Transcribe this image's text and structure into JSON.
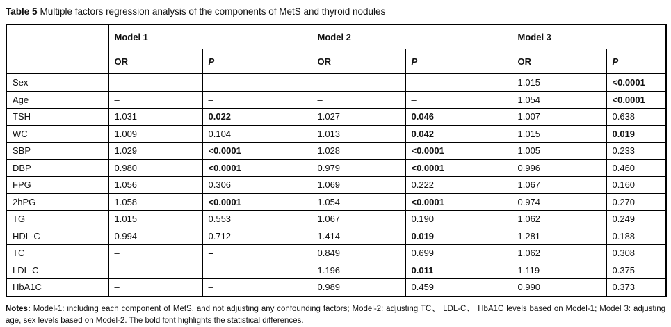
{
  "title": {
    "label": "Table 5",
    "text": "Multiple factors regression analysis of the components of MetS and thyroid nodules"
  },
  "table": {
    "models": [
      "Model 1",
      "Model 2",
      "Model 3"
    ],
    "or_label": "OR",
    "p_label": "P",
    "rows": [
      {
        "label": "Sex",
        "values": [
          "–",
          "–",
          "–",
          "–",
          "1.015",
          "<0.0001"
        ],
        "bold": [
          false,
          false,
          false,
          false,
          false,
          true
        ]
      },
      {
        "label": "Age",
        "values": [
          "–",
          "–",
          "–",
          "–",
          "1.054",
          "<0.0001"
        ],
        "bold": [
          false,
          false,
          false,
          false,
          false,
          true
        ]
      },
      {
        "label": "TSH",
        "values": [
          "1.031",
          "0.022",
          "1.027",
          "0.046",
          "1.007",
          "0.638"
        ],
        "bold": [
          false,
          true,
          false,
          true,
          false,
          false
        ]
      },
      {
        "label": "WC",
        "values": [
          "1.009",
          "0.104",
          "1.013",
          "0.042",
          "1.015",
          "0.019"
        ],
        "bold": [
          false,
          false,
          false,
          true,
          false,
          true
        ]
      },
      {
        "label": "SBP",
        "values": [
          "1.029",
          "<0.0001",
          "1.028",
          "<0.0001",
          "1.005",
          "0.233"
        ],
        "bold": [
          false,
          true,
          false,
          true,
          false,
          false
        ]
      },
      {
        "label": "DBP",
        "values": [
          "0.980",
          "<0.0001",
          "0.979",
          "<0.0001",
          "0.996",
          "0.460"
        ],
        "bold": [
          false,
          true,
          false,
          true,
          false,
          false
        ]
      },
      {
        "label": "FPG",
        "values": [
          "1.056",
          "0.306",
          "1.069",
          "0.222",
          "1.067",
          "0.160"
        ],
        "bold": [
          false,
          false,
          false,
          false,
          false,
          false
        ]
      },
      {
        "label": "2hPG",
        "values": [
          "1.058",
          "<0.0001",
          "1.054",
          "<0.0001",
          "0.974",
          "0.270"
        ],
        "bold": [
          false,
          true,
          false,
          true,
          false,
          false
        ]
      },
      {
        "label": "TG",
        "values": [
          "1.015",
          "0.553",
          "1.067",
          "0.190",
          "1.062",
          "0.249"
        ],
        "bold": [
          false,
          false,
          false,
          false,
          false,
          false
        ]
      },
      {
        "label": "HDL-C",
        "values": [
          "0.994",
          "0.712",
          "1.414",
          "0.019",
          "1.281",
          "0.188"
        ],
        "bold": [
          false,
          false,
          false,
          true,
          false,
          false
        ]
      },
      {
        "label": "TC",
        "values": [
          "–",
          "–",
          "0.849",
          "0.699",
          "1.062",
          "0.308"
        ],
        "bold": [
          false,
          true,
          false,
          false,
          false,
          false
        ]
      },
      {
        "label": "LDL-C",
        "values": [
          "–",
          "–",
          "1.196",
          "0.011",
          "1.119",
          "0.375"
        ],
        "bold": [
          false,
          false,
          false,
          true,
          false,
          false
        ]
      },
      {
        "label": "HbA1C",
        "values": [
          "–",
          "–",
          "0.989",
          "0.459",
          "0.990",
          "0.373"
        ],
        "bold": [
          false,
          false,
          false,
          false,
          false,
          false
        ]
      }
    ]
  },
  "notes": {
    "label": "Notes:",
    "text": " Model-1: including each component of MetS, and not adjusting any confounding factors; Model-2: adjusting TC、 LDL-C、 HbA1C levels based on Model-1; Model 3: adjusting age, sex levels based on Model-2. The bold font highlights the statistical differences."
  }
}
